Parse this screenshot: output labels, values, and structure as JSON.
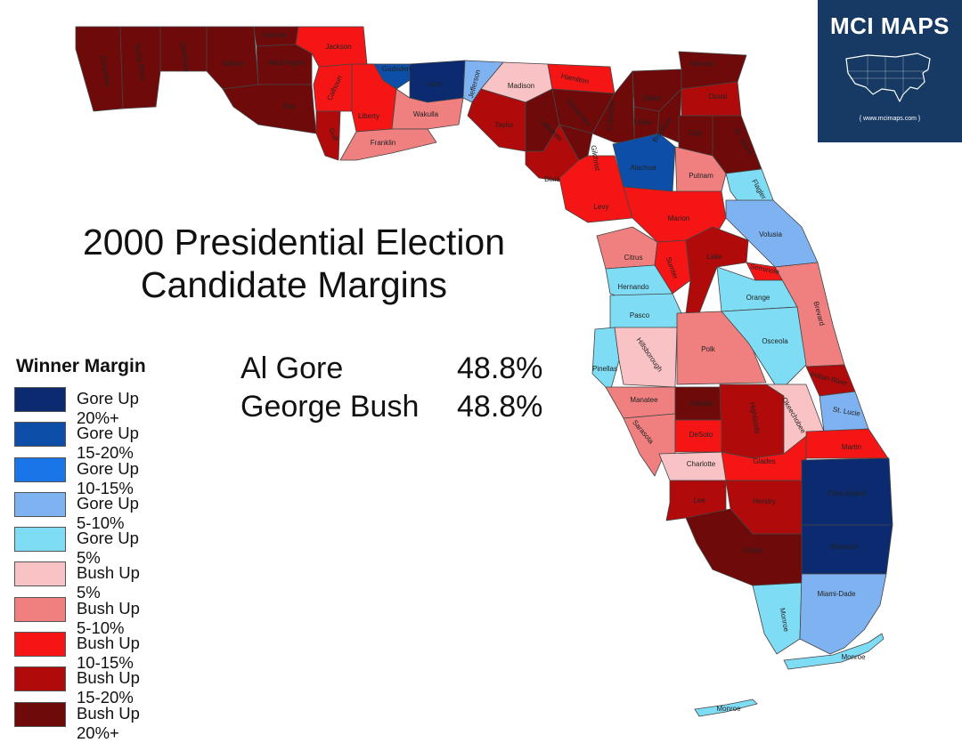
{
  "title": {
    "line1": "2000 Presidential Election",
    "line2": "Candidate Margins"
  },
  "results": [
    {
      "candidate": "Al Gore",
      "percent": "48.8%"
    },
    {
      "candidate": "George  Bush",
      "percent": "48.8%"
    }
  ],
  "legend": {
    "title": "Winner Margin",
    "items": [
      {
        "label": "Gore Up 20%+",
        "color": "#0b2a6f"
      },
      {
        "label": "Gore Up 15-20%",
        "color": "#0d4fa8"
      },
      {
        "label": "Gore Up 10-15%",
        "color": "#1a75e8"
      },
      {
        "label": "Gore Up 5-10%",
        "color": "#7fb2f0"
      },
      {
        "label": "Gore Up 5%",
        "color": "#7fdcf5"
      },
      {
        "label": "Bush Up 5%",
        "color": "#f9c3c6"
      },
      {
        "label": "Bush Up 5-10%",
        "color": "#f08080"
      },
      {
        "label": "Bush Up 10-15%",
        "color": "#f51515"
      },
      {
        "label": "Bush Up 15-20%",
        "color": "#b00a0a"
      },
      {
        "label": "Bush Up 20%+",
        "color": "#6e0a0a"
      }
    ]
  },
  "brand": {
    "name": "MCI MAPS",
    "url": "{ www.mcimaps.com }"
  },
  "counties": [
    {
      "name": "Escambia",
      "color": "#6e0a0a"
    },
    {
      "name": "Santa Rosa",
      "color": "#6e0a0a"
    },
    {
      "name": "Okaloosa",
      "color": "#6e0a0a"
    },
    {
      "name": "Walton",
      "color": "#6e0a0a"
    },
    {
      "name": "Holmes",
      "color": "#6e0a0a"
    },
    {
      "name": "Washington",
      "color": "#6e0a0a"
    },
    {
      "name": "Bay",
      "color": "#6e0a0a"
    },
    {
      "name": "Jackson",
      "color": "#f51515"
    },
    {
      "name": "Calhoun",
      "color": "#f51515"
    },
    {
      "name": "Gulf",
      "color": "#b00a0a"
    },
    {
      "name": "Liberty",
      "color": "#f51515"
    },
    {
      "name": "Gadsden",
      "color": "#0d4fa8"
    },
    {
      "name": "Leon",
      "color": "#0b2a6f"
    },
    {
      "name": "Wakulla",
      "color": "#f08080"
    },
    {
      "name": "Franklin",
      "color": "#f08080"
    },
    {
      "name": "Jefferson",
      "color": "#7fb2f0"
    },
    {
      "name": "Madison",
      "color": "#f9c3c6"
    },
    {
      "name": "Hamilton",
      "color": "#f51515"
    },
    {
      "name": "Taylor",
      "color": "#b00a0a"
    },
    {
      "name": "Lafayette",
      "color": "#6e0a0a"
    },
    {
      "name": "Suwannee",
      "color": "#6e0a0a"
    },
    {
      "name": "Columbia",
      "color": "#6e0a0a"
    },
    {
      "name": "Dixie",
      "color": "#b00a0a"
    },
    {
      "name": "Gilchrist",
      "color": "#6e0a0a"
    },
    {
      "name": "Union",
      "color": "#6e0a0a"
    },
    {
      "name": "Baker",
      "color": "#6e0a0a"
    },
    {
      "name": "Bradford",
      "color": "#6e0a0a"
    },
    {
      "name": "Nassau",
      "color": "#6e0a0a"
    },
    {
      "name": "Duval",
      "color": "#b00a0a"
    },
    {
      "name": "Clay",
      "color": "#6e0a0a"
    },
    {
      "name": "St. Johns",
      "color": "#6e0a0a"
    },
    {
      "name": "Alachua",
      "color": "#0d4fa8"
    },
    {
      "name": "Putnam",
      "color": "#f08080"
    },
    {
      "name": "Flagler",
      "color": "#7fdcf5"
    },
    {
      "name": "Levy",
      "color": "#f51515"
    },
    {
      "name": "Marion",
      "color": "#f51515"
    },
    {
      "name": "Volusia",
      "color": "#7fb2f0"
    },
    {
      "name": "Citrus",
      "color": "#f08080"
    },
    {
      "name": "Sumter",
      "color": "#f51515"
    },
    {
      "name": "Lake",
      "color": "#b00a0a"
    },
    {
      "name": "Seminole",
      "color": "#f51515"
    },
    {
      "name": "Hernando",
      "color": "#7fdcf5"
    },
    {
      "name": "Orange",
      "color": "#7fdcf5"
    },
    {
      "name": "Brevard",
      "color": "#f08080"
    },
    {
      "name": "Pasco",
      "color": "#7fdcf5"
    },
    {
      "name": "Pinellas",
      "color": "#7fdcf5"
    },
    {
      "name": "Hillsborough",
      "color": "#f9c3c6"
    },
    {
      "name": "Polk",
      "color": "#f08080"
    },
    {
      "name": "Osceola",
      "color": "#7fdcf5"
    },
    {
      "name": "Indian River",
      "color": "#b00a0a"
    },
    {
      "name": "Manatee",
      "color": "#f08080"
    },
    {
      "name": "Hardee",
      "color": "#6e0a0a"
    },
    {
      "name": "Highlands",
      "color": "#b00a0a"
    },
    {
      "name": "Okeechobee",
      "color": "#f9c3c6"
    },
    {
      "name": "St. Lucie",
      "color": "#7fb2f0"
    },
    {
      "name": "Sarasota",
      "color": "#f08080"
    },
    {
      "name": "DeSoto",
      "color": "#f51515"
    },
    {
      "name": "Martin",
      "color": "#f51515"
    },
    {
      "name": "Charlotte",
      "color": "#f9c3c6"
    },
    {
      "name": "Glades",
      "color": "#f51515"
    },
    {
      "name": "Palm Beach",
      "color": "#0b2a6f"
    },
    {
      "name": "Lee",
      "color": "#b00a0a"
    },
    {
      "name": "Hendry",
      "color": "#b00a0a"
    },
    {
      "name": "Broward",
      "color": "#0b2a6f"
    },
    {
      "name": "Collier",
      "color": "#6e0a0a"
    },
    {
      "name": "Monroe",
      "color": "#7fdcf5"
    },
    {
      "name": "Miami-Dade",
      "color": "#7fb2f0"
    },
    {
      "name": "Monroe",
      "color": "#7fdcf5"
    },
    {
      "name": "Monroe",
      "color": "#7fdcf5"
    }
  ]
}
